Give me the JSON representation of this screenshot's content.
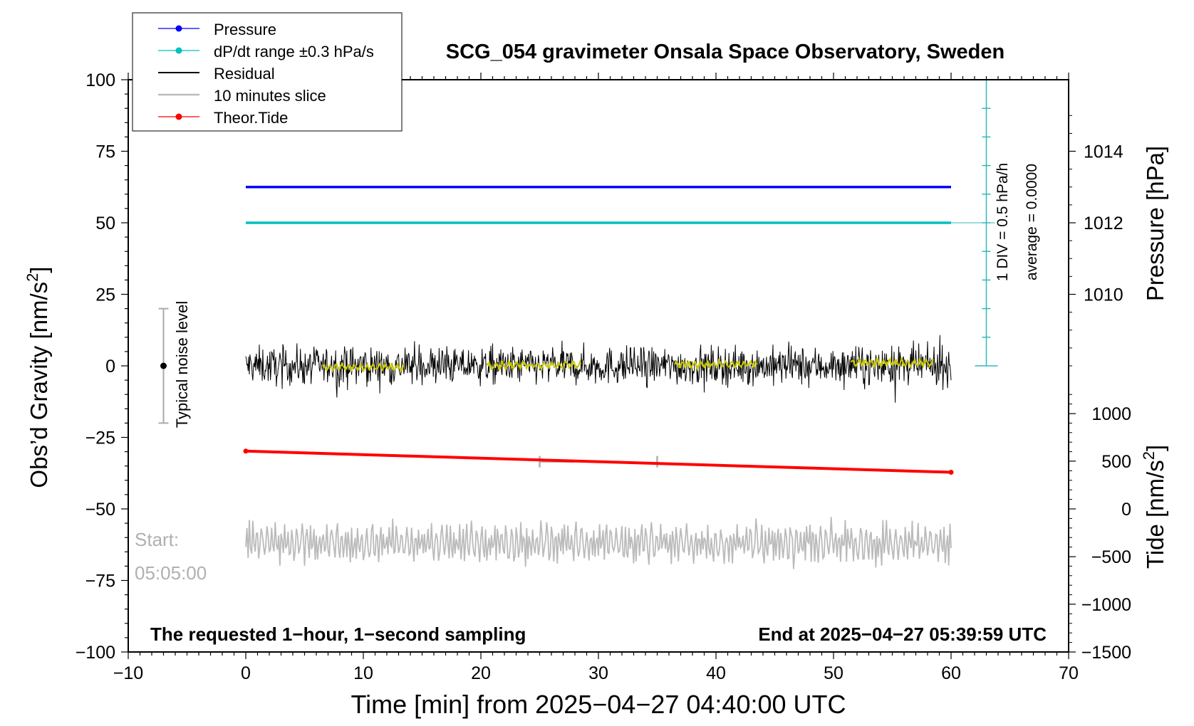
{
  "chart_data": {
    "type": "line",
    "title": "SCG_054 gravimeter Onsala Space Observatory, Sweden",
    "xlabel": "Time [min] from 2025−04−27 04:40:00 UTC",
    "ylabel_left": "Obs’d Gravity [nm/s",
    "ylabel_left_sup": "2",
    "ylabel_left_end": "]",
    "ylabel_pressure": "Pressure [hPa]",
    "ylabel_tide": "Tide [nm/s",
    "ylabel_tide_sup": "2",
    "ylabel_tide_end": "]",
    "xlim": [
      -10,
      70
    ],
    "ylim": [
      -100,
      100
    ],
    "xticks": [
      -10,
      0,
      10,
      20,
      30,
      40,
      50,
      60,
      70
    ],
    "xtick_labels": [
      "−10",
      "0",
      "10",
      "20",
      "30",
      "40",
      "50",
      "60",
      "70"
    ],
    "yticks": [
      100,
      75,
      50,
      25,
      0,
      -25,
      -50,
      -75,
      -100
    ],
    "ytick_labels": [
      "100",
      "75",
      "50",
      "25",
      "0",
      "−25",
      "−50",
      "−75",
      "−100"
    ],
    "pressure_axis": {
      "ticks": [
        1014,
        1012,
        1010
      ],
      "tick_labels": [
        "1014",
        "1012",
        "1010"
      ],
      "gravity_equiv": [
        75,
        50,
        25
      ]
    },
    "tide_axis": {
      "ticks": [
        1000,
        500,
        0,
        -500,
        -1000,
        -1500
      ],
      "tick_labels": [
        "1000",
        "500",
        "0",
        "−500",
        "−1000",
        "−1500"
      ],
      "gravity_equiv": [
        -16.7,
        -33.3,
        -50,
        -66.7,
        -83.3,
        -100
      ]
    },
    "series": [
      {
        "name": "Pressure",
        "color": "#0000ff",
        "x": [
          0,
          60
        ],
        "y": [
          62.5,
          62.5
        ]
      },
      {
        "name": "dP/dt range ±0.3 hPa/s",
        "color": "#00c0c0",
        "x": [
          0,
          60
        ],
        "y": [
          50,
          50
        ]
      },
      {
        "name": "Residual",
        "color": "#000000",
        "x_range": [
          0,
          60
        ],
        "mean": 0,
        "amplitude": 6
      },
      {
        "name": "10 minutes slice",
        "color": "#bbbbbb",
        "x_range": [
          0,
          60
        ],
        "mean": -62,
        "amplitude": 6
      },
      {
        "name": "Theor.Tide",
        "color": "#ff0000",
        "x": [
          0,
          60
        ],
        "y": [
          -29.8,
          -37.2
        ]
      }
    ],
    "smoothed_segments": {
      "color": "#c8c800",
      "ranges": [
        [
          6.5,
          13.5
        ],
        [
          20.5,
          28.5
        ],
        [
          36.5,
          43.5
        ],
        [
          51.5,
          58.5
        ]
      ],
      "values": [
        -0.5,
        0.3,
        0.5,
        1.0
      ]
    },
    "gray_markers": [
      {
        "x": 25,
        "y": -33.5
      },
      {
        "x": 35,
        "y": -33.5
      }
    ],
    "noise_bar": {
      "x": -7,
      "y_low": -20,
      "y_high": 20,
      "center": 0,
      "label": "Typical noise level"
    },
    "dpdt_scale": {
      "label_div": "1 DIV = 0.5 hPa/h",
      "label_avg": "average = 0.0000",
      "x": 63,
      "y_bottom": 0,
      "y_top": 100,
      "divisions": 10
    },
    "annotations": {
      "start_label": "Start:",
      "start_time": "05:05:00",
      "bottom_left": "The requested 1−hour, 1−second sampling",
      "bottom_right": "End at 2025−04−27 05:39:59 UTC"
    },
    "legend": {
      "position": "top-left",
      "entries": [
        {
          "label": "Pressure",
          "color": "#0000ff",
          "marker": true
        },
        {
          "label": "dP/dt range ±0.3 hPa/s",
          "color": "#00c0c0",
          "marker": true
        },
        {
          "label": "Residual",
          "color": "#000000",
          "marker": false
        },
        {
          "label": "10 minutes slice",
          "color": "#bbbbbb",
          "marker": false
        },
        {
          "label": "Theor.Tide",
          "color": "#ff0000",
          "marker": true
        }
      ]
    }
  }
}
